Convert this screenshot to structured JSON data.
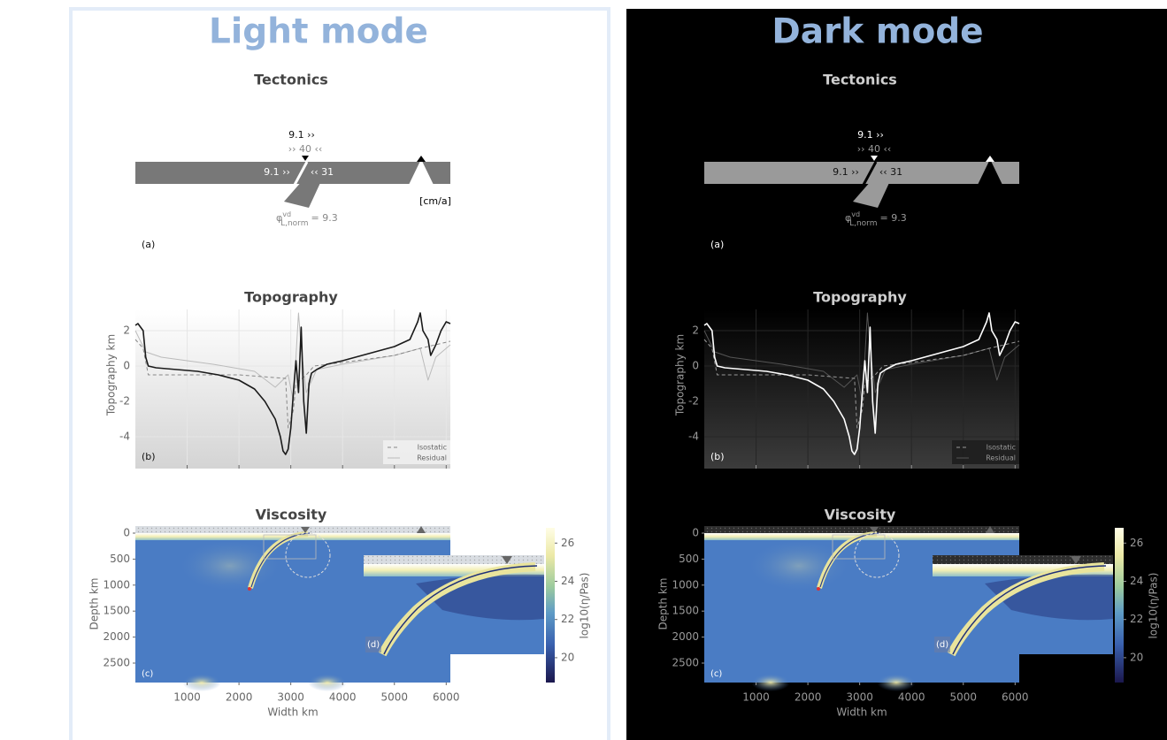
{
  "panels": [
    {
      "title": "Light mode"
    },
    {
      "title": "Dark mode"
    }
  ],
  "chart_data": [
    {
      "type": "schematic",
      "title": "Tectonics",
      "panel_label": "(a)",
      "annotations": [
        "9.1 ››",
        "›› 40 ‹‹",
        "9.1 ››",
        "‹‹ 31",
        "[cm/a]"
      ],
      "parameter": {
        "symbol": "φ",
        "superscript": "vd",
        "subscript": "L,norm",
        "text": "= 9.3"
      }
    },
    {
      "type": "line",
      "title": "Topography",
      "panel_label": "(b)",
      "ylabel": "Topography km",
      "xlim": [
        0,
        6080
      ],
      "xticks": [
        1000,
        2000,
        3000,
        4000,
        5000,
        6000
      ],
      "xtick_labels": false,
      "ylim": [
        -5.8,
        3.2
      ],
      "yticks": [
        -4,
        -2,
        0,
        2
      ],
      "grid": true,
      "legend": "lower right",
      "series": [
        {
          "color": "#1a1a1a",
          "dark_color": "#ffffff",
          "dash": false,
          "x": [
            0,
            50,
            150,
            200,
            250,
            400,
            800,
            1200,
            1600,
            2000,
            2300,
            2500,
            2700,
            2800,
            2850,
            2900,
            2950,
            3000,
            3050,
            3100,
            3150,
            3200,
            3250,
            3300,
            3350,
            3400,
            3500,
            3700,
            4000,
            4500,
            5000,
            5300,
            5450,
            5500,
            5550,
            5650,
            5700,
            5800,
            5900,
            6000,
            6080
          ],
          "values": [
            2.3,
            2.4,
            2.0,
            0.5,
            0.0,
            -0.1,
            -0.2,
            -0.3,
            -0.5,
            -0.8,
            -1.3,
            -2.0,
            -3.0,
            -4.0,
            -4.8,
            -5.0,
            -4.7,
            -3.5,
            -1.5,
            0.3,
            -1.5,
            2.2,
            -2.0,
            -3.8,
            -1.0,
            -0.4,
            -0.2,
            0.1,
            0.3,
            0.7,
            1.1,
            1.5,
            2.5,
            3.0,
            2.0,
            1.5,
            0.6,
            1.2,
            2.0,
            2.5,
            2.4
          ]
        },
        {
          "name": "Isostatic",
          "color": "#888888",
          "dark_color": "#999999",
          "dash": true,
          "x": [
            0,
            150,
            250,
            1000,
            2000,
            2900,
            2950,
            3050,
            3100,
            3300,
            3450,
            4000,
            5000,
            5500,
            6080
          ],
          "values": [
            1.5,
            1.0,
            -0.5,
            -0.5,
            -0.5,
            -0.7,
            -3.5,
            -2.5,
            -1.0,
            -0.5,
            0.0,
            0.2,
            0.6,
            1.0,
            1.4
          ]
        },
        {
          "name": "Residual",
          "color": "#bbbbbb",
          "dark_color": "#555555",
          "dash": false,
          "x": [
            0,
            200,
            500,
            1500,
            2300,
            2700,
            2950,
            3050,
            3150,
            3200,
            3300,
            3500,
            4000,
            5000,
            5500,
            5650,
            5800,
            6080
          ],
          "values": [
            2.0,
            0.8,
            0.5,
            0.1,
            -0.3,
            -1.2,
            -0.5,
            -2.0,
            3.0,
            1.0,
            -1.5,
            -0.2,
            0.1,
            0.6,
            1.0,
            -0.8,
            0.5,
            1.2
          ]
        }
      ]
    },
    {
      "type": "heatmap",
      "title": "Viscosity",
      "panel_labels": [
        "(c)",
        "(d)"
      ],
      "xlabel": "Width km",
      "ylabel": "Depth km",
      "xlim": [
        0,
        6080
      ],
      "xticks": [
        1000,
        2000,
        3000,
        4000,
        5000,
        6000
      ],
      "ylim": [
        -136,
        2874
      ],
      "y_inverted": true,
      "yticks": [
        0,
        500,
        1000,
        1500,
        2000,
        2500
      ],
      "colorbar": {
        "label": "log10(η/Pas)",
        "lim": [
          18.7,
          26.8
        ],
        "ticks": [
          20,
          22,
          24,
          26
        ]
      }
    }
  ]
}
